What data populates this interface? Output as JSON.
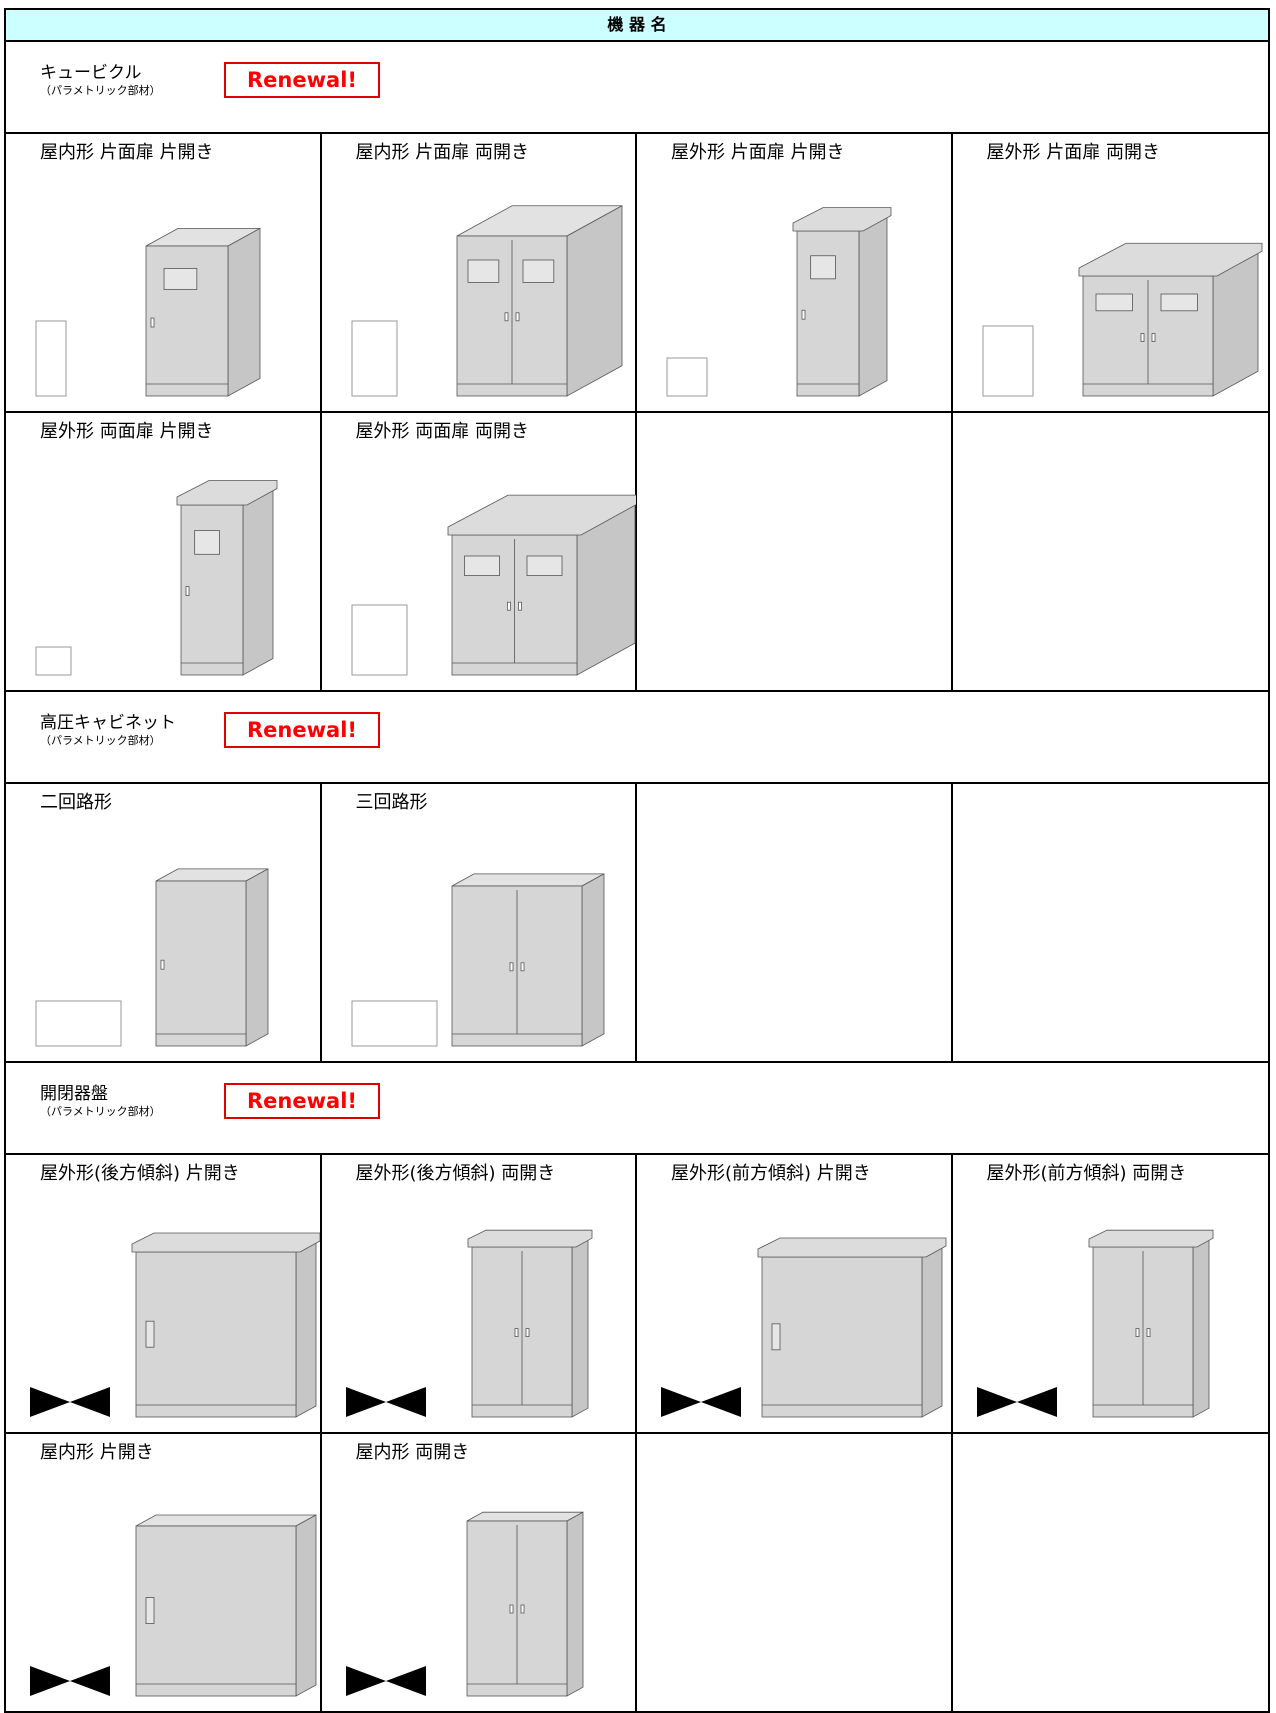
{
  "header": {
    "title": "機 器 名"
  },
  "sections": [
    {
      "title": "キュービクル",
      "subtitle": "（パラメトリック部材）",
      "badge": "Renewal!",
      "items": [
        "屋内形 片面扉 片開き",
        "屋内形 片面扉 両開き",
        "屋外形 片面扉 片開き",
        "屋外形 片面扉 両開き",
        "屋外形 両面扉 片開き",
        "屋外形 両面扉 両開き"
      ]
    },
    {
      "title": "高圧キャビネット",
      "subtitle": "（パラメトリック部材）",
      "badge": "Renewal!",
      "items": [
        "二回路形",
        "三回路形"
      ]
    },
    {
      "title": "開閉器盤",
      "subtitle": "（パラメトリック部材）",
      "badge": "Renewal!",
      "items": [
        "屋外形(後方傾斜) 片開き",
        "屋外形(後方傾斜) 両開き",
        "屋外形(前方傾斜) 片開き",
        "屋外形(前方傾斜) 両開き",
        "屋内形 片開き",
        "屋内形 両開き"
      ]
    }
  ]
}
